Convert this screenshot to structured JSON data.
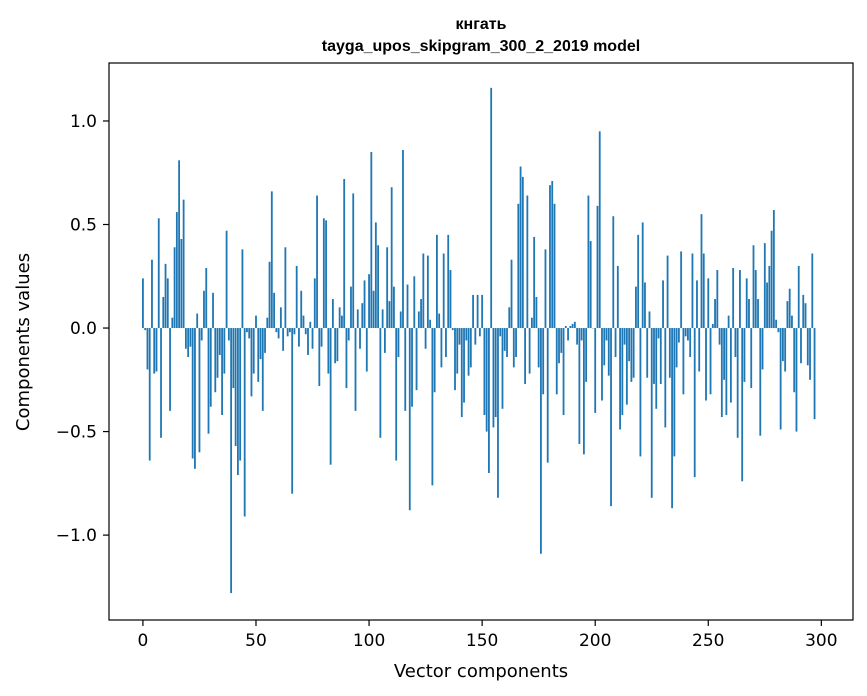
{
  "chart_data": {
    "type": "bar",
    "title": "кнгать",
    "subtitle": "tayga_upos_skipgram_300_2_2019 model",
    "xlabel": "Vector components",
    "ylabel": "Components values",
    "xlim": [
      -15,
      314
    ],
    "ylim": [
      -1.41,
      1.28
    ],
    "xticks": [
      0,
      50,
      100,
      150,
      200,
      250,
      300
    ],
    "xtick_labels": [
      "0",
      "50",
      "100",
      "150",
      "200",
      "250",
      "300"
    ],
    "yticks": [
      -1.0,
      -0.5,
      0.0,
      0.5,
      1.0
    ],
    "ytick_labels": [
      "−1.0",
      "−0.5",
      "0.0",
      "0.5",
      "1.0"
    ],
    "grid": false,
    "bar_color": "#1f77b4",
    "values": [
      0.24,
      -0.01,
      -0.2,
      -0.64,
      0.33,
      -0.22,
      -0.21,
      0.53,
      -0.53,
      0.15,
      0.31,
      0.24,
      -0.4,
      0.05,
      0.39,
      0.56,
      0.81,
      0.43,
      0.62,
      -0.1,
      -0.14,
      -0.09,
      -0.63,
      -0.68,
      0.07,
      -0.6,
      -0.06,
      0.18,
      0.29,
      -0.51,
      -0.38,
      0.17,
      -0.31,
      -0.24,
      -0.13,
      -0.42,
      -0.22,
      0.47,
      -0.06,
      -1.28,
      -0.29,
      -0.57,
      -0.71,
      -0.64,
      0.38,
      -0.91,
      -0.02,
      -0.05,
      -0.33,
      -0.22,
      0.06,
      -0.26,
      -0.15,
      -0.4,
      -0.12,
      0.05,
      0.32,
      0.66,
      0.17,
      -0.02,
      -0.05,
      0.1,
      -0.11,
      0.39,
      -0.04,
      -0.02,
      -0.8,
      -0.03,
      0.3,
      -0.09,
      0.18,
      0.06,
      -0.03,
      -0.13,
      0.03,
      -0.1,
      0.24,
      0.64,
      -0.28,
      -0.09,
      0.53,
      0.52,
      -0.22,
      -0.66,
      0.14,
      -0.17,
      -0.16,
      0.1,
      0.06,
      0.72,
      -0.29,
      -0.06,
      0.2,
      0.65,
      -0.4,
      0.09,
      -0.1,
      0.12,
      0.23,
      -0.21,
      0.26,
      0.85,
      0.18,
      0.51,
      0.4,
      -0.53,
      0.09,
      -0.12,
      0.39,
      0.13,
      0.68,
      0.2,
      -0.64,
      -0.14,
      0.08,
      0.86,
      -0.4,
      0.21,
      -0.88,
      -0.38,
      0.25,
      -0.3,
      0.08,
      0.14,
      0.36,
      -0.1,
      0.35,
      0.04,
      -0.76,
      -0.31,
      0.45,
      0.07,
      -0.19,
      0.36,
      -0.14,
      0.45,
      0.28,
      -0.01,
      -0.3,
      -0.22,
      -0.08,
      -0.43,
      -0.36,
      -0.06,
      -0.23,
      -0.19,
      0.16,
      -0.08,
      0.16,
      -0.04,
      0.16,
      -0.42,
      -0.5,
      -0.7,
      1.16,
      -0.48,
      -0.43,
      -0.82,
      -0.04,
      -0.39,
      -0.11,
      -0.14,
      0.1,
      0.33,
      -0.19,
      -0.14,
      0.6,
      0.78,
      0.73,
      -0.27,
      0.64,
      -0.22,
      0.05,
      0.44,
      0.15,
      -0.19,
      -1.09,
      -0.32,
      0.38,
      -0.65,
      0.69,
      0.71,
      0.6,
      -0.32,
      -0.17,
      -0.12,
      -0.42,
      0.01,
      -0.06,
      0.01,
      0.02,
      0.03,
      -0.08,
      -0.56,
      -0.06,
      -0.61,
      -0.26,
      0.64,
      0.42,
      0.0,
      -0.41,
      0.59,
      0.95,
      -0.35,
      -0.18,
      -0.06,
      -0.23,
      -0.86,
      0.54,
      -0.14,
      0.3,
      -0.49,
      -0.42,
      -0.08,
      -0.37,
      -0.16,
      -0.26,
      -0.24,
      0.2,
      0.45,
      -0.62,
      0.51,
      0.22,
      -0.24,
      0.08,
      -0.82,
      -0.27,
      -0.39,
      -0.05,
      -0.27,
      0.23,
      -0.48,
      0.35,
      -0.24,
      -0.87,
      -0.62,
      -0.19,
      -0.07,
      0.37,
      -0.32,
      -0.04,
      -0.06,
      -0.14,
      0.36,
      -0.72,
      0.23,
      -0.21,
      0.55,
      0.36,
      -0.35,
      0.24,
      -0.32,
      0.02,
      0.14,
      0.28,
      -0.08,
      -0.43,
      -0.25,
      -0.42,
      0.06,
      -0.36,
      0.29,
      -0.14,
      -0.53,
      0.28,
      -0.74,
      -0.26,
      0.24,
      0.14,
      -0.29,
      0.4,
      0.28,
      0.14,
      -0.52,
      -0.2,
      0.41,
      0.22,
      0.3,
      0.47,
      0.57,
      0.04,
      -0.02,
      -0.49,
      -0.16,
      -0.21,
      0.13,
      0.19,
      0.06,
      -0.31,
      -0.5,
      0.3,
      -0.17,
      0.16,
      0.12,
      -0.18,
      -0.25,
      0.36,
      -0.44
    ]
  }
}
